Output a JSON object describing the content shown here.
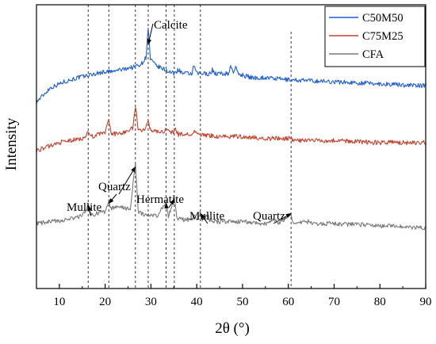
{
  "chart_data": {
    "type": "line",
    "xlabel": "2θ (°)",
    "ylabel": "Intensity",
    "xlim": [
      5,
      90
    ],
    "x_ticks": [
      "10",
      "20",
      "30",
      "40",
      "50",
      "60",
      "70",
      "80",
      "90"
    ],
    "grid": false,
    "legend_position": "top-right",
    "series": [
      {
        "name": "C50M50",
        "color": "#1f5fd6",
        "points": [
          [
            5,
            92
          ],
          [
            8,
            99
          ],
          [
            11,
            102
          ],
          [
            14,
            104
          ],
          [
            16,
            105
          ],
          [
            18,
            106
          ],
          [
            20,
            107
          ],
          [
            22,
            107
          ],
          [
            23,
            108
          ],
          [
            24,
            108
          ],
          [
            25,
            109
          ],
          [
            26,
            109
          ],
          [
            27,
            110
          ],
          [
            28,
            111
          ],
          [
            28.9,
            114
          ],
          [
            29.4,
            128
          ],
          [
            29.9,
            113
          ],
          [
            31,
            110
          ],
          [
            32,
            109
          ],
          [
            33,
            108
          ],
          [
            34,
            107
          ],
          [
            35,
            106
          ],
          [
            36,
            108
          ],
          [
            37,
            106
          ],
          [
            39,
            106
          ],
          [
            39.4,
            110
          ],
          [
            40,
            106
          ],
          [
            43,
            106
          ],
          [
            43.4,
            108
          ],
          [
            44,
            106
          ],
          [
            47,
            106
          ],
          [
            47.4,
            110
          ],
          [
            48,
            107
          ],
          [
            48.5,
            109
          ],
          [
            49,
            106
          ],
          [
            52,
            104
          ],
          [
            55,
            104
          ],
          [
            60,
            103
          ],
          [
            70,
            102
          ],
          [
            80,
            101
          ],
          [
            90,
            100
          ]
        ]
      },
      {
        "name": "C75M25",
        "color": "#c8402c",
        "points": [
          [
            5,
            68
          ],
          [
            10,
            72
          ],
          [
            15,
            74
          ],
          [
            16.4,
            77
          ],
          [
            17,
            75
          ],
          [
            20,
            77
          ],
          [
            20.8,
            83
          ],
          [
            21.4,
            76
          ],
          [
            24,
            77
          ],
          [
            26,
            79
          ],
          [
            26.6,
            90
          ],
          [
            27.2,
            79
          ],
          [
            28.5,
            78
          ],
          [
            29.4,
            82
          ],
          [
            30,
            78
          ],
          [
            33,
            77
          ],
          [
            33.4,
            80
          ],
          [
            34,
            77
          ],
          [
            35,
            77
          ],
          [
            35.2,
            79
          ],
          [
            36,
            76
          ],
          [
            39,
            76
          ],
          [
            39.5,
            78
          ],
          [
            40,
            76
          ],
          [
            45,
            75
          ],
          [
            50,
            75
          ],
          [
            55,
            74
          ],
          [
            60,
            74
          ],
          [
            60.6,
            75
          ],
          [
            61,
            73
          ],
          [
            70,
            73
          ],
          [
            80,
            72
          ],
          [
            90,
            72
          ]
        ]
      },
      {
        "name": "CFA",
        "color": "#7a7a7a",
        "points": [
          [
            5,
            32
          ],
          [
            8,
            33
          ],
          [
            12,
            34
          ],
          [
            15,
            36
          ],
          [
            16.3,
            41
          ],
          [
            16.8,
            36
          ],
          [
            18,
            37
          ],
          [
            20,
            38
          ],
          [
            20.8,
            43
          ],
          [
            21.3,
            39
          ],
          [
            22,
            40
          ],
          [
            24,
            40
          ],
          [
            25.5,
            39
          ],
          [
            26.6,
            62
          ],
          [
            27.2,
            38
          ],
          [
            29,
            36
          ],
          [
            30,
            36
          ],
          [
            31.5,
            36
          ],
          [
            33.3,
            43
          ],
          [
            33.8,
            35
          ],
          [
            35.1,
            45
          ],
          [
            35.6,
            35
          ],
          [
            37,
            34
          ],
          [
            39,
            34
          ],
          [
            39.4,
            36
          ],
          [
            40,
            34
          ],
          [
            40.8,
            37
          ],
          [
            41.2,
            34
          ],
          [
            42.4,
            36
          ],
          [
            43,
            33
          ],
          [
            50,
            33
          ],
          [
            55,
            32
          ],
          [
            57.3,
            34
          ],
          [
            58,
            32
          ],
          [
            60.6,
            37
          ],
          [
            61,
            32
          ],
          [
            64.5,
            33
          ],
          [
            65,
            32
          ],
          [
            70,
            32
          ],
          [
            80,
            31
          ],
          [
            90,
            30
          ]
        ]
      }
    ],
    "reference_lines_x": [
      16.3,
      20.8,
      26.6,
      29.4,
      33.3,
      35.1,
      40.8,
      60.6
    ],
    "annotations": [
      {
        "text": "Calcite",
        "x": 29.4
      },
      {
        "text": "Quartz",
        "x": 26.6
      },
      {
        "text": "Mullite",
        "x": 16.3
      },
      {
        "text": "Hermatite",
        "x": 33.3
      },
      {
        "text": "Mullite",
        "x": 40.8
      },
      {
        "text": "Quartz",
        "x": 60.6
      }
    ]
  }
}
